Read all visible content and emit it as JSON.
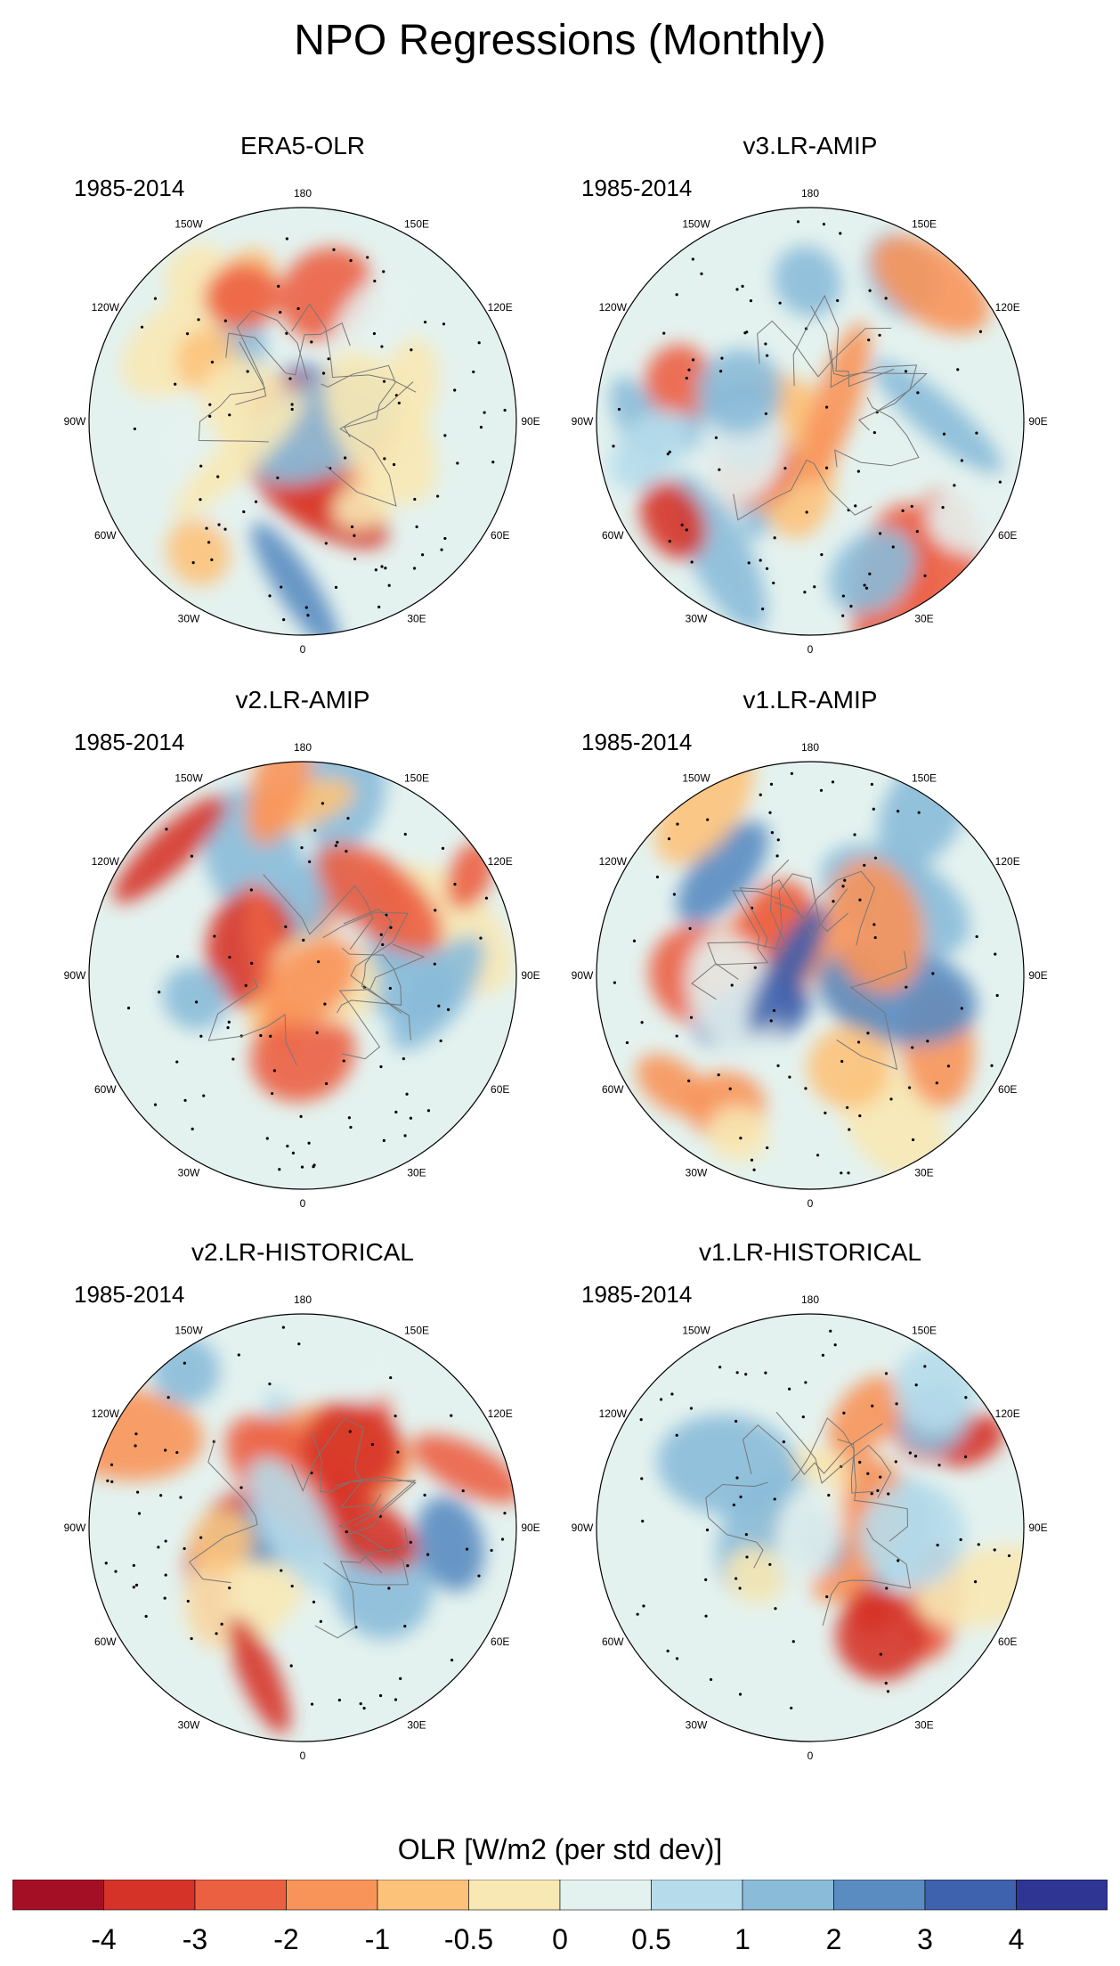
{
  "title": "NPO Regressions (Monthly)",
  "panels": [
    {
      "title": "ERA5-OLR",
      "period": "1985-2014",
      "seed": 11
    },
    {
      "title": "v3.LR-AMIP",
      "period": "1985-2014",
      "seed": 23
    },
    {
      "title": "v2.LR-AMIP",
      "period": "1985-2014",
      "seed": 37
    },
    {
      "title": "v1.LR-AMIP",
      "period": "1985-2014",
      "seed": 41
    },
    {
      "title": "v2.LR-HISTORICAL",
      "period": "1985-2014",
      "seed": 53
    },
    {
      "title": "v1.LR-HISTORICAL",
      "period": "1985-2014",
      "seed": 67
    }
  ],
  "longitude_labels": [
    "180",
    "150E",
    "120E",
    "90E",
    "60E",
    "30E",
    "0",
    "30W",
    "60W",
    "90W",
    "120W",
    "150W"
  ],
  "colorbar": {
    "title": "OLR [W/m2 (per std dev)]",
    "tick_labels": [
      "-4",
      "-3",
      "-2",
      "-1",
      "-0.5",
      "0",
      "0.5",
      "1",
      "2",
      "3",
      "4"
    ],
    "colors": [
      "#a50f26",
      "#d63328",
      "#ec6042",
      "#f8945a",
      "#fdc27a",
      "#f8e8b4",
      "#e4f2ef",
      "#b6dceb",
      "#8abbd9",
      "#5a8cc1",
      "#3e62ad",
      "#2f3592"
    ]
  },
  "chart_data": {
    "type": "polar-map",
    "title": "NPO Regressions (Monthly)",
    "variable": "OLR",
    "units": "W/m2 (per std dev)",
    "levels": [
      -4,
      -3,
      -2,
      -1,
      -0.5,
      0,
      0.5,
      1,
      2,
      3,
      4
    ],
    "series": [
      {
        "name": "ERA5-OLR",
        "period": "1985-2014"
      },
      {
        "name": "v3.LR-AMIP",
        "period": "1985-2014"
      },
      {
        "name": "v2.LR-AMIP",
        "period": "1985-2014"
      },
      {
        "name": "v1.LR-AMIP",
        "period": "1985-2014"
      },
      {
        "name": "v2.LR-HISTORICAL",
        "period": "1985-2014"
      },
      {
        "name": "v1.LR-HISTORICAL",
        "period": "1985-2014"
      }
    ]
  }
}
